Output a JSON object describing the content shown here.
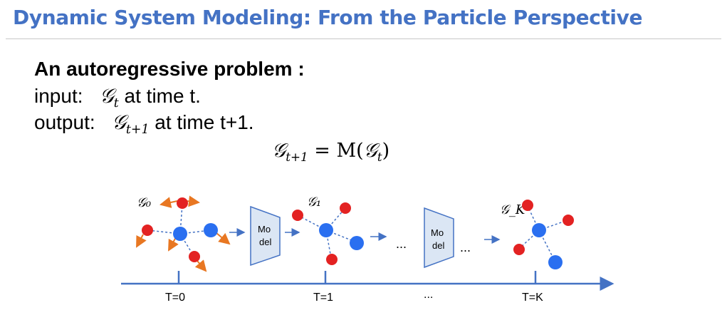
{
  "title": "Dynamic System Modeling: From the Particle Perspective",
  "heading": "An autoregressive problem :",
  "input": {
    "prefix": "input:",
    "symbol": "𝒢",
    "sub": "t",
    "suffix": "at time t."
  },
  "output": {
    "prefix": "output:",
    "symbol": "𝒢",
    "sub": "t+1",
    "suffix": "at time t+1."
  },
  "equation": {
    "lhs_symbol": "𝒢",
    "lhs_sub": "t+1",
    "rhs_prefix": "= M(",
    "rhs_symbol": "𝒢",
    "rhs_sub": "t",
    "rhs_suffix": ")"
  },
  "figure": {
    "graph_labels": [
      "𝒢₀",
      "𝒢₁",
      "𝒢_K"
    ],
    "model_label_line1": "Mo",
    "model_label_line2": "del",
    "ellipsis": "...",
    "axis_ticks": [
      "T=0",
      "T=1",
      "...",
      "T=K"
    ],
    "colors": {
      "blue_node": "#2a6ff0",
      "red_node": "#e32222",
      "arrow": "#4472c4",
      "force": "#e87722",
      "edge": "#4472c4"
    }
  }
}
